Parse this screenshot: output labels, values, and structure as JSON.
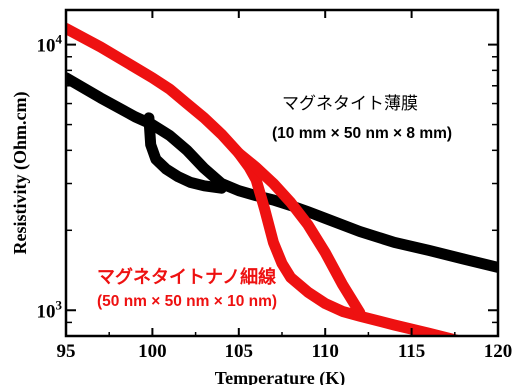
{
  "chart_data": {
    "type": "line",
    "title": "",
    "xlabel": "Temperature (K)",
    "ylabel": "Resistivity (Ohm.cm)",
    "xlim": [
      95,
      120
    ],
    "ylim": [
      800,
      13500
    ],
    "yscale": "log",
    "grid": false,
    "xticks": [
      95,
      100,
      105,
      110,
      115,
      120
    ],
    "xtick_labels": [
      "95",
      "100",
      "105",
      "110",
      "115",
      "120"
    ],
    "yticks": [
      1000,
      10000
    ],
    "ytick_base": "10",
    "ytick_exponents": [
      "3",
      "4"
    ],
    "colors": {
      "film": "#000000",
      "nanowire": "#ee1111"
    },
    "series": [
      {
        "key": "film",
        "x": [
          95,
          97,
          99,
          100,
          101,
          102,
          103,
          104,
          105,
          106,
          107,
          108,
          109,
          110,
          112,
          114,
          116,
          118,
          120
        ],
        "y": [
          7500,
          6300,
          5350,
          5000,
          4550,
          4000,
          3420,
          3000,
          2820,
          2700,
          2600,
          2480,
          2350,
          2220,
          1980,
          1800,
          1680,
          1560,
          1450
        ]
      },
      {
        "key": "film_cooling_branch",
        "x": [
          99.8,
          99.9,
          100.2,
          100.8,
          101.5,
          102.2,
          103.0,
          104.0
        ],
        "y": [
          5300,
          4200,
          3700,
          3400,
          3180,
          3030,
          2940,
          2880
        ]
      },
      {
        "key": "nanowire",
        "x": [
          95,
          97,
          99,
          100,
          101,
          102,
          103,
          104,
          105,
          105.6,
          106,
          106.5,
          107,
          107.5,
          108,
          109,
          110,
          111,
          112,
          114,
          116,
          118,
          120
        ],
        "y": [
          11500,
          9800,
          8200,
          7500,
          6800,
          6000,
          5300,
          4600,
          3900,
          3450,
          3100,
          2400,
          1800,
          1500,
          1330,
          1170,
          1060,
          990,
          950,
          880,
          820,
          760,
          700
        ]
      },
      {
        "key": "nanowire_warming_branch",
        "x": [
          105,
          106,
          107,
          108,
          109,
          110,
          111,
          112
        ],
        "y": [
          3900,
          3450,
          3000,
          2550,
          2100,
          1650,
          1250,
          980
        ]
      }
    ],
    "annotations": [
      {
        "key": "film",
        "line1": "マグネタイト薄膜",
        "line2": "(10 mm × 50 nm ×  8 mm)"
      },
      {
        "key": "nanowire",
        "line1": "マグネタイトナノ細線",
        "line2": "(50 nm × 50 nm × 10 nm)"
      }
    ]
  }
}
